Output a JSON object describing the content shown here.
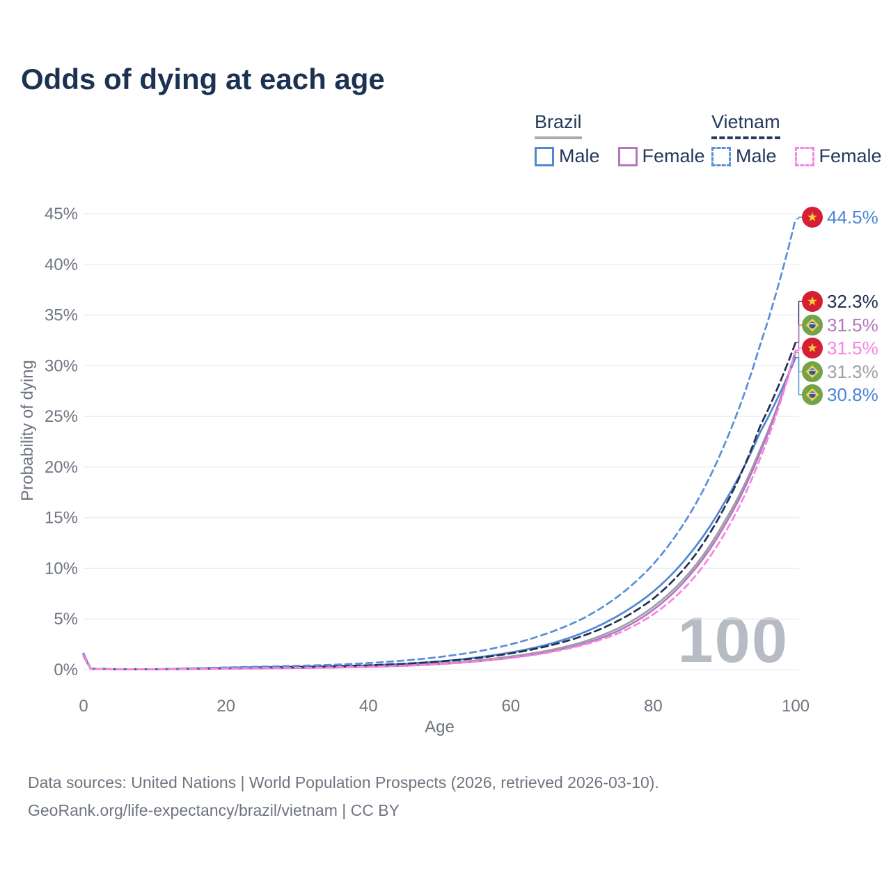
{
  "header": {
    "title": "Odds of dying at each age"
  },
  "legend": {
    "groups": [
      {
        "label": "Brazil",
        "line_style": "solid",
        "underline_color": "#a7aaae",
        "items": [
          {
            "label": "Male",
            "color": "#4f87d3",
            "dashed": false
          },
          {
            "label": "Female",
            "color": "#b477bc",
            "dashed": false
          }
        ]
      },
      {
        "label": "Vietnam",
        "line_style": "dashed",
        "underline_color": "#233a5c",
        "items": [
          {
            "label": "Male",
            "color": "#5b8fd8",
            "dashed": true
          },
          {
            "label": "Female",
            "color": "#f982e2",
            "dashed": true
          }
        ]
      }
    ]
  },
  "chart_data": {
    "type": "line",
    "title": "Odds of dying at each age",
    "xlabel": "Age",
    "ylabel": "Probability of dying",
    "xlim": [
      0,
      100
    ],
    "ylim": [
      0,
      45
    ],
    "xticks": [
      0,
      20,
      40,
      60,
      80,
      100
    ],
    "yticks": [
      0,
      5,
      10,
      15,
      20,
      25,
      30,
      35,
      40,
      45
    ],
    "ytick_suffix": "%",
    "grid": true,
    "legend_position": "top-right",
    "watermark": "100",
    "ages": [
      0,
      1,
      5,
      10,
      15,
      20,
      25,
      30,
      35,
      40,
      45,
      50,
      55,
      60,
      65,
      70,
      75,
      80,
      85,
      90,
      95,
      100
    ],
    "series": [
      {
        "name": "Vietnam Male",
        "key": "vietnam-male",
        "flag": "vietnam",
        "color": "#5b8fd8",
        "dash": "9 6",
        "end_value": 44.5,
        "end_label": "44.5%",
        "label_color": "#4a86d8",
        "values": [
          1.6,
          0.1,
          0.05,
          0.05,
          0.13,
          0.22,
          0.3,
          0.38,
          0.48,
          0.65,
          0.9,
          1.25,
          1.75,
          2.5,
          3.55,
          5.0,
          7.2,
          10.4,
          15.2,
          22.2,
          32.0,
          44.5
        ]
      },
      {
        "name": "Vietnam",
        "key": "vietnam-total",
        "flag": "vietnam",
        "color": "#24304f",
        "dash": "10 6",
        "end_value": 32.3,
        "end_label": "32.3%",
        "label_color": "#24304f",
        "values": [
          1.5,
          0.09,
          0.04,
          0.04,
          0.1,
          0.16,
          0.21,
          0.26,
          0.33,
          0.43,
          0.58,
          0.8,
          1.12,
          1.6,
          2.3,
          3.3,
          4.8,
          7.0,
          10.5,
          16.0,
          24.0,
          32.3
        ]
      },
      {
        "name": "Brazil Female",
        "key": "brazil-female",
        "flag": "brazil",
        "color": "#b477bc",
        "dash": null,
        "end_value": 31.5,
        "end_label": "31.5%",
        "label_color": "#b477bc",
        "values": [
          1.3,
          0.08,
          0.03,
          0.03,
          0.06,
          0.1,
          0.13,
          0.16,
          0.2,
          0.27,
          0.38,
          0.55,
          0.8,
          1.18,
          1.7,
          2.5,
          3.8,
          5.9,
          9.2,
          14.2,
          21.4,
          31.5
        ]
      },
      {
        "name": "Vietnam Female",
        "key": "vietnam-female",
        "flag": "vietnam",
        "color": "#f982e2",
        "dash": "9 6",
        "end_value": 31.5,
        "end_label": "31.5%",
        "label_color": "#f982e2",
        "values": [
          1.4,
          0.08,
          0.04,
          0.04,
          0.08,
          0.12,
          0.15,
          0.18,
          0.23,
          0.29,
          0.4,
          0.56,
          0.8,
          1.15,
          1.65,
          2.4,
          3.55,
          5.45,
          8.5,
          13.4,
          20.8,
          31.5
        ]
      },
      {
        "name": "Brazil",
        "key": "brazil-total",
        "flag": "brazil",
        "color": "#9ba1a8",
        "dash": null,
        "end_value": 31.3,
        "end_label": "31.3%",
        "label_color": "#9ba1a8",
        "values": [
          1.4,
          0.09,
          0.04,
          0.03,
          0.09,
          0.15,
          0.19,
          0.21,
          0.25,
          0.32,
          0.45,
          0.62,
          0.9,
          1.3,
          1.85,
          2.7,
          4.05,
          6.2,
          9.5,
          14.6,
          21.7,
          31.3
        ]
      },
      {
        "name": "Brazil Male",
        "key": "brazil-male",
        "flag": "brazil",
        "color": "#4f87d3",
        "dash": null,
        "end_value": 30.8,
        "end_label": "30.8%",
        "label_color": "#4a86d8",
        "values": [
          1.5,
          0.1,
          0.04,
          0.04,
          0.12,
          0.2,
          0.25,
          0.28,
          0.33,
          0.42,
          0.58,
          0.82,
          1.18,
          1.7,
          2.45,
          3.6,
          5.3,
          7.7,
          11.3,
          16.5,
          23.4,
          30.8
        ]
      }
    ]
  },
  "footer": {
    "line1": "Data sources: United Nations | World Population Prospects (2026, retrieved 2026-03-10).",
    "line2": "GeoRank.org/life-expectancy/brazil/vietnam | CC BY"
  }
}
